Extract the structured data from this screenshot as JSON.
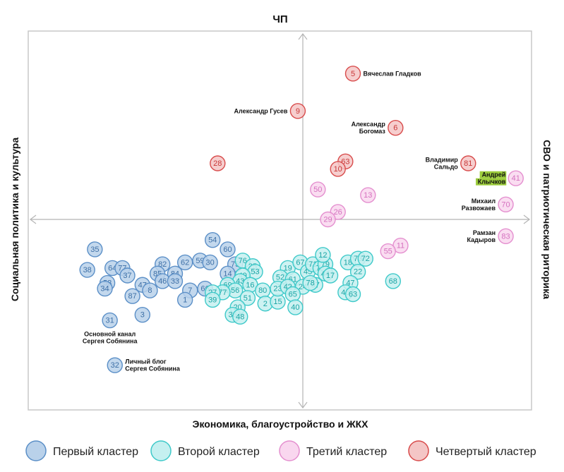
{
  "chart_data": {
    "type": "scatter",
    "title": "",
    "axes": {
      "top": "ЧП",
      "bottom": "Экономика, благоустройство и ЖКХ",
      "left": "Социальная политика и культура",
      "right": "СВО и патриотическая риторика"
    },
    "xlim": [
      -100,
      100
    ],
    "ylim": [
      -100,
      100
    ],
    "grid": false,
    "legend_position": "bottom",
    "clusters": [
      {
        "id": "c1",
        "name": "Первый кластер",
        "fill": "#b9d1ea",
        "stroke": "#5b8fc7",
        "text": "#3d6fa6"
      },
      {
        "id": "c2",
        "name": "Второй кластер",
        "fill": "#c5f0f0",
        "stroke": "#3ec9c9",
        "text": "#1aa5a5"
      },
      {
        "id": "c3",
        "name": "Третий кластер",
        "fill": "#f9d7ef",
        "stroke": "#e48fcf",
        "text": "#d571bf"
      },
      {
        "id": "c4",
        "name": "Четвертый кластер",
        "fill": "#f4c6c6",
        "stroke": "#d84b4b",
        "text": "#c83838"
      }
    ],
    "points": [
      {
        "id": "5",
        "c": "c4",
        "x": 20,
        "y": 78,
        "label": [
          "Вячеслав Гладков"
        ],
        "lp": "right"
      },
      {
        "id": "9",
        "c": "c4",
        "x": -2,
        "y": 58,
        "label": [
          "Александр Гусев"
        ],
        "lp": "left"
      },
      {
        "id": "6",
        "c": "c4",
        "x": 37,
        "y": 49,
        "label": [
          "Александр",
          "Богомаз"
        ],
        "lp": "left"
      },
      {
        "id": "81",
        "c": "c4",
        "x": 66,
        "y": 30,
        "label": [
          "Владимир",
          "Сальдо"
        ],
        "lp": "left"
      },
      {
        "id": "28",
        "c": "c4",
        "x": -34,
        "y": 30,
        "label": null
      },
      {
        "id": "63",
        "c": "c4",
        "x": 17,
        "y": 31,
        "label": null
      },
      {
        "id": "10",
        "c": "c4",
        "x": 14,
        "y": 27,
        "label": null
      },
      {
        "id": "41",
        "c": "c3",
        "x": 85,
        "y": 22,
        "label": [
          "Андрей",
          "Клычков"
        ],
        "lp": "left",
        "hl": true
      },
      {
        "id": "70",
        "c": "c3",
        "x": 81,
        "y": 8,
        "label": [
          "Михаил",
          "Развожаев"
        ],
        "lp": "left"
      },
      {
        "id": "83",
        "c": "c3",
        "x": 81,
        "y": -9,
        "label": [
          "Рамзан",
          "Кадыров"
        ],
        "lp": "left"
      },
      {
        "id": "50",
        "c": "c3",
        "x": 6,
        "y": 16,
        "label": null
      },
      {
        "id": "13",
        "c": "c3",
        "x": 26,
        "y": 13,
        "label": null
      },
      {
        "id": "26",
        "c": "c3",
        "x": 14,
        "y": 4,
        "label": null
      },
      {
        "id": "29",
        "c": "c3",
        "x": 10,
        "y": 0,
        "label": null
      },
      {
        "id": "11",
        "c": "c3",
        "x": 39,
        "y": -14,
        "label": null
      },
      {
        "id": "55",
        "c": "c3",
        "x": 34,
        "y": -17,
        "label": null
      },
      {
        "id": "35",
        "c": "c1",
        "x": -83,
        "y": -16,
        "label": null
      },
      {
        "id": "38",
        "c": "c1",
        "x": -86,
        "y": -27,
        "label": null
      },
      {
        "id": "64",
        "c": "c1",
        "x": -76,
        "y": -26,
        "label": null
      },
      {
        "id": "7a",
        "c": "c1",
        "x": -72,
        "y": -26,
        "label": null,
        "text": "77"
      },
      {
        "id": "37",
        "c": "c1",
        "x": -70,
        "y": -30,
        "label": null
      },
      {
        "id": "82",
        "c": "c1",
        "x": -56,
        "y": -24,
        "label": null
      },
      {
        "id": "85",
        "c": "c1",
        "x": -58,
        "y": -29,
        "label": null
      },
      {
        "id": "84",
        "c": "c1",
        "x": -51,
        "y": -29,
        "label": null
      },
      {
        "id": "62",
        "c": "c1",
        "x": -47,
        "y": -23,
        "label": null
      },
      {
        "id": "59",
        "c": "c1",
        "x": -41,
        "y": -22,
        "label": null
      },
      {
        "id": "30",
        "c": "c1",
        "x": -37,
        "y": -23,
        "label": null
      },
      {
        "id": "54",
        "c": "c1",
        "x": -36,
        "y": -11,
        "label": null
      },
      {
        "id": "60",
        "c": "c1",
        "x": -30,
        "y": -16,
        "label": null
      },
      {
        "id": "75",
        "c": "c1",
        "x": -27,
        "y": -24,
        "label": null
      },
      {
        "id": "14",
        "c": "c1",
        "x": -30,
        "y": -29,
        "label": null
      },
      {
        "id": "46",
        "c": "c1",
        "x": -56,
        "y": -33,
        "label": null
      },
      {
        "id": "33",
        "c": "c1",
        "x": -51,
        "y": -33,
        "label": null
      },
      {
        "id": "47",
        "c": "c1",
        "x": -64,
        "y": -35,
        "label": null
      },
      {
        "id": "58",
        "c": "c1",
        "x": -78,
        "y": -34,
        "label": null
      },
      {
        "id": "34",
        "c": "c1",
        "x": -79,
        "y": -37,
        "label": null
      },
      {
        "id": "8",
        "c": "c1",
        "x": -61,
        "y": -38,
        "label": null
      },
      {
        "id": "87",
        "c": "c1",
        "x": -68,
        "y": -41,
        "label": null
      },
      {
        "id": "7",
        "c": "c1",
        "x": -45,
        "y": -38,
        "label": null
      },
      {
        "id": "66",
        "c": "c1",
        "x": -39,
        "y": -37,
        "label": null
      },
      {
        "id": "1",
        "c": "c1",
        "x": -47,
        "y": -43,
        "label": null
      },
      {
        "id": "3",
        "c": "c1",
        "x": -64,
        "y": -51,
        "label": null
      },
      {
        "id": "31",
        "c": "c1",
        "x": -77,
        "y": -54,
        "label": [
          "Основной канал",
          "Сергея Собянина"
        ],
        "lp": "below"
      },
      {
        "id": "32",
        "c": "c1",
        "x": -75,
        "y": -78,
        "label": [
          "Личный блог",
          "Сергея Собянина"
        ],
        "lp": "right"
      },
      {
        "id": "76",
        "c": "c2",
        "x": -24,
        "y": -22,
        "label": null
      },
      {
        "id": "25",
        "c": "c2",
        "x": -20,
        "y": -25,
        "label": null
      },
      {
        "id": "53",
        "c": "c2",
        "x": -19,
        "y": -28,
        "label": null
      },
      {
        "id": "49",
        "c": "c2",
        "x": -24,
        "y": -30,
        "label": null
      },
      {
        "id": "4a",
        "c": "c2",
        "x": -25,
        "y": -33,
        "label": null,
        "text": "43"
      },
      {
        "id": "16",
        "c": "c2",
        "x": -21,
        "y": -35,
        "label": null
      },
      {
        "id": "69",
        "c": "c2",
        "x": -30,
        "y": -35,
        "label": null
      },
      {
        "id": "56",
        "c": "c2",
        "x": -27,
        "y": -38,
        "label": null
      },
      {
        "id": "77",
        "c": "c2",
        "x": -32,
        "y": -39,
        "label": null
      },
      {
        "id": "27",
        "c": "c2",
        "x": -36,
        "y": -39,
        "label": null
      },
      {
        "id": "39",
        "c": "c2",
        "x": -36,
        "y": -43,
        "label": null
      },
      {
        "id": "51",
        "c": "c2",
        "x": -22,
        "y": -42,
        "label": null
      },
      {
        "id": "80",
        "c": "c2",
        "x": -16,
        "y": -38,
        "label": null
      },
      {
        "id": "2",
        "c": "c2",
        "x": -15,
        "y": -45,
        "label": null
      },
      {
        "id": "20",
        "c": "c2",
        "x": -26,
        "y": -47,
        "label": null
      },
      {
        "id": "36",
        "c": "c2",
        "x": -28,
        "y": -51,
        "label": null
      },
      {
        "id": "48",
        "c": "c2",
        "x": -25,
        "y": -52,
        "label": null
      },
      {
        "id": "19",
        "c": "c2",
        "x": -6,
        "y": -26,
        "label": null
      },
      {
        "id": "67",
        "c": "c2",
        "x": -1,
        "y": -23,
        "label": null
      },
      {
        "id": "52",
        "c": "c2",
        "x": -9,
        "y": -31,
        "label": null
      },
      {
        "id": "61",
        "c": "c2",
        "x": -4,
        "y": -32,
        "label": null
      },
      {
        "id": "4b",
        "c": "c2",
        "x": 2,
        "y": -28,
        "label": null,
        "text": "45"
      },
      {
        "id": "15",
        "c": "c2",
        "x": -10,
        "y": -44,
        "label": null
      },
      {
        "id": "23",
        "c": "c2",
        "x": -10,
        "y": -37,
        "label": null
      },
      {
        "id": "42",
        "c": "c2",
        "x": -6,
        "y": -36,
        "label": null
      },
      {
        "id": "24",
        "c": "c2",
        "x": 0,
        "y": -36,
        "label": null
      },
      {
        "id": "65",
        "c": "c2",
        "x": -4,
        "y": -40,
        "label": null
      },
      {
        "id": "57",
        "c": "c2",
        "x": 5,
        "y": -35,
        "label": null
      },
      {
        "id": "40",
        "c": "c2",
        "x": -3,
        "y": -47,
        "label": null
      },
      {
        "id": "71",
        "c": "c2",
        "x": 4,
        "y": -24,
        "label": null
      },
      {
        "id": "74",
        "c": "c2",
        "x": 7,
        "y": -26,
        "label": null
      },
      {
        "id": "79",
        "c": "c2",
        "x": 9,
        "y": -24,
        "label": null
      },
      {
        "id": "12",
        "c": "c2",
        "x": 8,
        "y": -19,
        "label": null
      },
      {
        "id": "44",
        "c": "c2",
        "x": 9,
        "y": -29,
        "label": null
      },
      {
        "id": "17",
        "c": "c2",
        "x": 11,
        "y": -30,
        "label": null
      },
      {
        "id": "4c",
        "c": "c2",
        "x": 3,
        "y": -34,
        "label": null,
        "text": "78"
      },
      {
        "id": "18",
        "c": "c2",
        "x": 18,
        "y": -23,
        "label": null
      },
      {
        "id": "73",
        "c": "c2",
        "x": 22,
        "y": -21,
        "label": null
      },
      {
        "id": "72",
        "c": "c2",
        "x": 25,
        "y": -21,
        "label": null
      },
      {
        "id": "22",
        "c": "c2",
        "x": 22,
        "y": -28,
        "label": null
      },
      {
        "id": "4d",
        "c": "c2",
        "x": 19,
        "y": -34,
        "label": null,
        "text": "47"
      },
      {
        "id": "4e",
        "c": "c2",
        "x": 17,
        "y": -39,
        "label": null,
        "text": "46"
      },
      {
        "id": "63b",
        "c": "c2",
        "x": 20,
        "y": -40,
        "label": null,
        "text": "63"
      },
      {
        "id": "68",
        "c": "c2",
        "x": 36,
        "y": -33,
        "label": null
      }
    ]
  },
  "legend": [
    {
      "cluster": "c1",
      "label": "Первый кластер"
    },
    {
      "cluster": "c2",
      "label": "Второй кластер"
    },
    {
      "cluster": "c3",
      "label": "Третий кластер"
    },
    {
      "cluster": "c4",
      "label": "Четвертый кластер"
    }
  ]
}
